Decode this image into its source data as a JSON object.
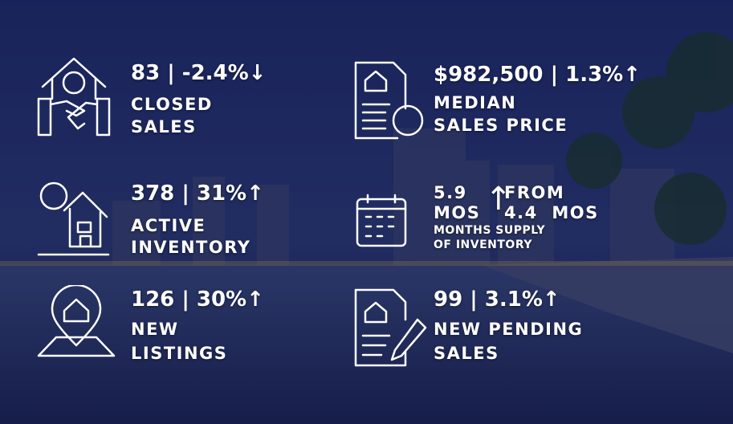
{
  "metrics": [
    {
      "headline": "83 | -2.4%↓",
      "label_lines": [
        "CLOSED",
        "SALES"
      ]
    },
    {
      "headline": "$982,500 | 1.3%↑",
      "label_lines": [
        "MEDIAN",
        "SALES PRICE"
      ]
    },
    {
      "headline": "378 | 31%↑",
      "label_lines": [
        "ACTIVE",
        "INVENTORY"
      ]
    },
    {
      "current": "5.9",
      "current_unit": "MOS",
      "arrow": "↑",
      "from_text": "FROM",
      "previous": "4.4  MOS",
      "label_lines": [
        "MONTHS SUPPLY",
        "OF INVENTORY"
      ]
    },
    {
      "headline": "126 | 30%↑",
      "label_lines": [
        "NEW",
        "LISTINGS"
      ]
    },
    {
      "headline": "99 | 3.1%↑",
      "label_lines": [
        "NEW PENDING",
        "SALES"
      ]
    }
  ]
}
